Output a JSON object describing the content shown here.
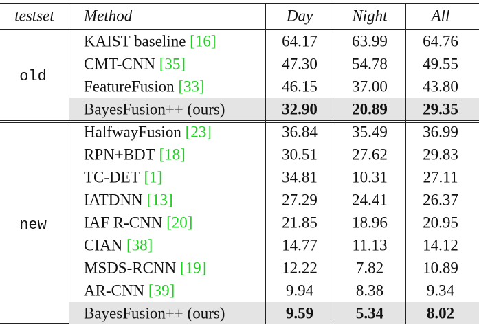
{
  "table": {
    "header": {
      "testset": "testset",
      "method": "Method",
      "day": "Day",
      "night": "Night",
      "all": "All"
    },
    "groups": [
      {
        "testset": "old",
        "rows": [
          {
            "method": "KAIST baseline",
            "ref": "[16]",
            "day": "64.17",
            "night": "63.99",
            "all": "64.76"
          },
          {
            "method": "CMT-CNN",
            "ref": "[35]",
            "day": "47.30",
            "night": "54.78",
            "all": "49.55"
          },
          {
            "method": "FeatureFusion",
            "ref": "[33]",
            "day": "46.15",
            "night": "37.00",
            "all": "43.80"
          },
          {
            "method": "BayesFusion++ (ours)",
            "day": "32.90",
            "night": "20.89",
            "all": "29.35",
            "highlight": true
          }
        ]
      },
      {
        "testset": "new",
        "rows": [
          {
            "method": "HalfwayFusion",
            "ref": "[23]",
            "day": "36.84",
            "night": "35.49",
            "all": "36.99"
          },
          {
            "method": "RPN+BDT",
            "ref": "[18]",
            "day": "30.51",
            "night": "27.62",
            "all": "29.83"
          },
          {
            "method": "TC-DET",
            "ref": "[1]",
            "day": "34.81",
            "night": "10.31",
            "all": "27.11"
          },
          {
            "method": "IATDNN",
            "ref": "[13]",
            "day": "27.29",
            "night": "24.41",
            "all": "26.37"
          },
          {
            "method": "IAF R-CNN",
            "ref": "[20]",
            "day": "21.85",
            "night": "18.96",
            "all": "20.95"
          },
          {
            "method": "CIAN",
            "ref": "[38]",
            "day": "14.77",
            "night": "11.13",
            "all": "14.12"
          },
          {
            "method": "MSDS-RCNN",
            "ref": "[19]",
            "day": "12.22",
            "night": "7.82",
            "all": "10.89"
          },
          {
            "method": "AR-CNN",
            "ref": "[39]",
            "day": "9.94",
            "night": "8.38",
            "all": "9.34"
          },
          {
            "method": "BayesFusion++ (ours)",
            "day": "9.59",
            "night": "5.34",
            "all": "8.02",
            "highlight": true
          }
        ]
      }
    ]
  }
}
